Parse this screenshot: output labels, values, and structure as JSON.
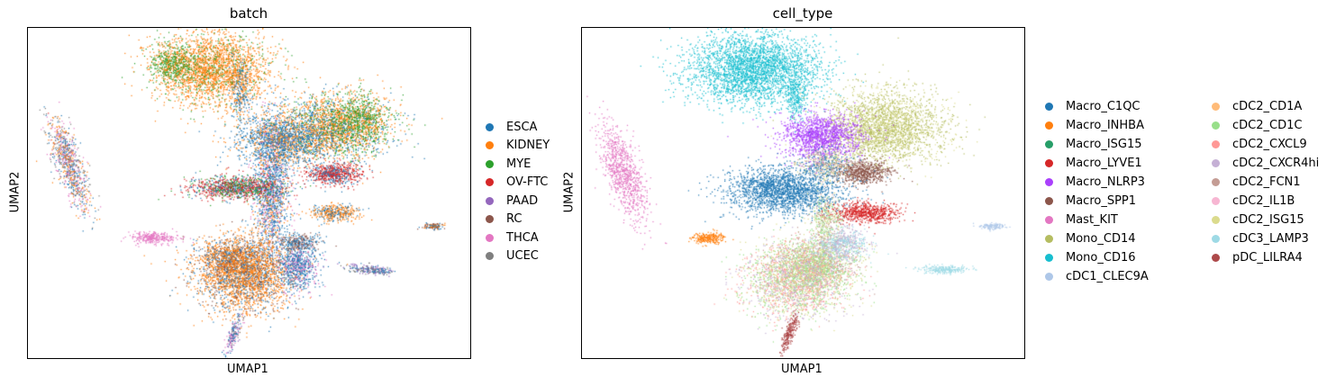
{
  "chart_data": [
    {
      "type": "scatter",
      "title": "batch",
      "xlabel": "UMAP1",
      "ylabel": "UMAP2",
      "legend_position": "right",
      "categories": [
        "ESCA",
        "KIDNEY",
        "MYE",
        "OV-FTC",
        "PAAD",
        "RC",
        "THCA",
        "UCEC"
      ],
      "colors": [
        "#1f77b4",
        "#ff7f0e",
        "#2ca02c",
        "#d62728",
        "#9467bd",
        "#8c564b",
        "#e377c2",
        "#7f7f7f"
      ]
    },
    {
      "type": "scatter",
      "title": "cell_type",
      "xlabel": "UMAP1",
      "ylabel": "UMAP2",
      "legend_position": "right",
      "categories": [
        "Macro_C1QC",
        "Macro_INHBA",
        "Macro_ISG15",
        "Macro_LYVE1",
        "Macro_NLRP3",
        "Macro_SPP1",
        "Mast_KIT",
        "Mono_CD14",
        "Mono_CD16",
        "cDC1_CLEC9A",
        "cDC2_CD1A",
        "cDC2_CD1C",
        "cDC2_CXCL9",
        "cDC2_CXCR4hi",
        "cDC2_FCN1",
        "cDC2_IL1B",
        "cDC2_ISG15",
        "cDC3_LAMP3",
        "pDC_LILRA4"
      ],
      "colors": [
        "#1f77b4",
        "#ff7f0e",
        "#279e68",
        "#d62728",
        "#aa40fc",
        "#8c564b",
        "#e377c2",
        "#b5bd61",
        "#17becf",
        "#aec7e8",
        "#ffbb78",
        "#98df8a",
        "#ff9896",
        "#c5b0d5",
        "#c49c94",
        "#f7b6d2",
        "#dbdb8d",
        "#9edae5",
        "#ad494a"
      ]
    }
  ]
}
